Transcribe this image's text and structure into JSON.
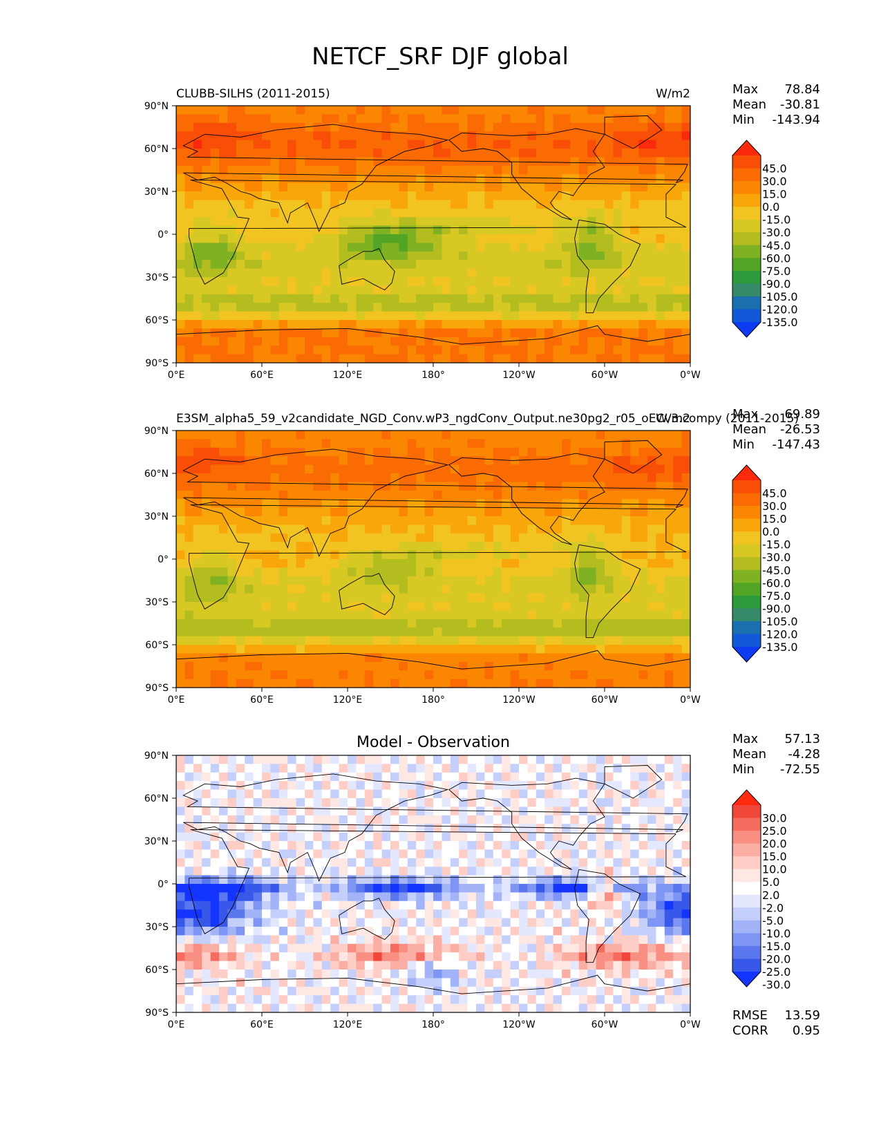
{
  "figure": {
    "title": "NETCF_SRF DJF global",
    "x_ticks": [
      "0°E",
      "60°E",
      "120°E",
      "180°",
      "120°W",
      "60°W",
      "0°W"
    ],
    "y_ticks": [
      "90°N",
      "60°N",
      "30°N",
      "0°",
      "30°S",
      "60°S",
      "90°S"
    ]
  },
  "chart_data": [
    {
      "type": "heatmap",
      "title_left": "CLUBB-SILHS (2011-2015)",
      "title_right": "W/m2",
      "xlim": [
        0,
        360
      ],
      "ylim": [
        -90,
        90
      ],
      "stats": [
        {
          "label": "Max",
          "value": "78.84"
        },
        {
          "label": "Mean",
          "value": "-30.81"
        },
        {
          "label": "Min",
          "value": "-143.94"
        }
      ],
      "colorbar": {
        "levels": [
          "45.0",
          "30.0",
          "15.0",
          "0.0",
          "-15.0",
          "-30.0",
          "-45.0",
          "-60.0",
          "-75.0",
          "-90.0",
          "-105.0",
          "-120.0",
          "-135.0"
        ],
        "colors": [
          "#fb2a0c",
          "#f94e08",
          "#fa6b04",
          "#fb8601",
          "#f9a60a",
          "#f2c422",
          "#d7c824",
          "#b4bd1f",
          "#7fb222",
          "#52a524",
          "#2d9a3c",
          "#358a6a",
          "#1a6fae",
          "#1358d8",
          "#0d3bf2"
        ]
      }
    },
    {
      "type": "heatmap",
      "title_left": "E3SM_alpha5_59_v2candidate_NGD_Conv.wP3_ngdConv_Output.ne30pg2_r05_oECv3.compy (2011-2015)",
      "title_right": "W/m2",
      "xlim": [
        0,
        360
      ],
      "ylim": [
        -90,
        90
      ],
      "stats": [
        {
          "label": "Max",
          "value": "69.89"
        },
        {
          "label": "Mean",
          "value": "-26.53"
        },
        {
          "label": "Min",
          "value": "-147.43"
        }
      ],
      "colorbar": {
        "levels": [
          "45.0",
          "30.0",
          "15.0",
          "0.0",
          "-15.0",
          "-30.0",
          "-45.0",
          "-60.0",
          "-75.0",
          "-90.0",
          "-105.0",
          "-120.0",
          "-135.0"
        ],
        "colors": [
          "#fb2a0c",
          "#f94e08",
          "#fa6b04",
          "#fb8601",
          "#f9a60a",
          "#f2c422",
          "#d7c824",
          "#b4bd1f",
          "#7fb222",
          "#52a524",
          "#2d9a3c",
          "#358a6a",
          "#1a6fae",
          "#1358d8",
          "#0d3bf2"
        ]
      }
    },
    {
      "type": "heatmap",
      "title_center": "Model - Observation",
      "xlim": [
        0,
        360
      ],
      "ylim": [
        -90,
        90
      ],
      "stats": [
        {
          "label": "Max",
          "value": "57.13"
        },
        {
          "label": "Mean",
          "value": "-4.28"
        },
        {
          "label": "Min",
          "value": "-72.55"
        }
      ],
      "metrics": [
        {
          "label": "RMSE",
          "value": "13.59"
        },
        {
          "label": "CORR",
          "value": "0.95"
        }
      ],
      "colorbar": {
        "levels": [
          "30.0",
          "25.0",
          "20.0",
          "15.0",
          "10.0",
          "5.0",
          "2.0",
          "-2.0",
          "-5.0",
          "-10.0",
          "-15.0",
          "-20.0",
          "-25.0",
          "-30.0"
        ],
        "colors": [
          "#ff2a10",
          "#f0463a",
          "#f56c5e",
          "#f88f82",
          "#fbaea4",
          "#fdcdc6",
          "#ffe8e4",
          "#ffffff",
          "#e3e8ff",
          "#c4cffb",
          "#a2b3f7",
          "#7f95f3",
          "#5b77ee",
          "#3858ea",
          "#1434ff"
        ]
      }
    }
  ]
}
